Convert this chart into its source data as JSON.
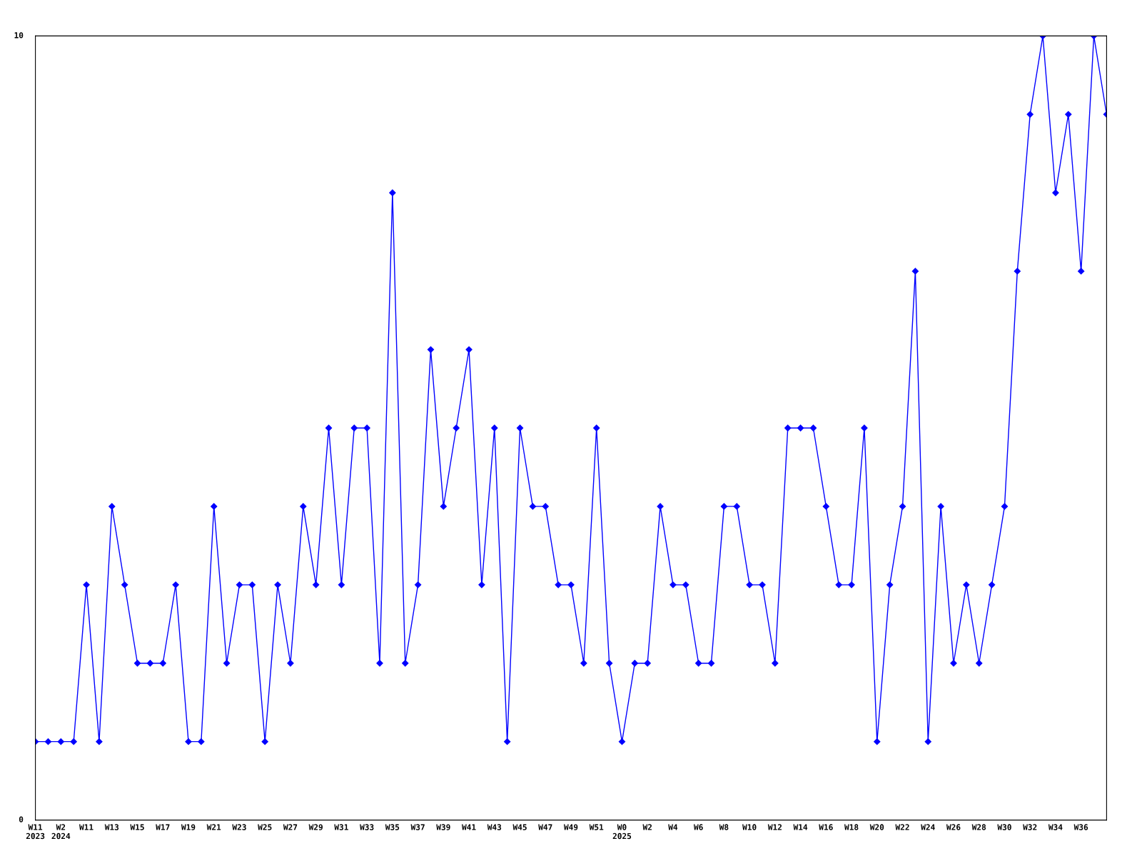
{
  "chart_data": {
    "type": "line",
    "categories": [
      "W11\n2023",
      null,
      "W2\n2024",
      null,
      "W11",
      null,
      "W13",
      null,
      "W15",
      null,
      "W17",
      null,
      "W19",
      null,
      "W21",
      null,
      "W23",
      null,
      "W25",
      null,
      "W27",
      null,
      "W29",
      null,
      "W31",
      null,
      "W33",
      null,
      "W35",
      null,
      "W37",
      null,
      "W39",
      null,
      "W41",
      null,
      "W43",
      null,
      "W45",
      null,
      "W47",
      null,
      "W49",
      null,
      "W51",
      null,
      "W0\n2025",
      null,
      "W2",
      null,
      "W4",
      null,
      "W6",
      null,
      "W8",
      null,
      "W10",
      null,
      "W12",
      null,
      "W14",
      null,
      "W16",
      null,
      "W18",
      null,
      "W20",
      null,
      "W22",
      null,
      "W24",
      null,
      "W26",
      null,
      "W28",
      null,
      "W30",
      null,
      "W32",
      null,
      "W34",
      null,
      "W36",
      null,
      null
    ],
    "series": [
      {
        "color": "#0000ff",
        "values": [
          1,
          1,
          1,
          1,
          3,
          1,
          4,
          3,
          2,
          2,
          2,
          3,
          1,
          1,
          4,
          2,
          3,
          3,
          1,
          3,
          2,
          4,
          3,
          5,
          3,
          5,
          5,
          2,
          8,
          2,
          3,
          6,
          4,
          5,
          6,
          3,
          5,
          1,
          5,
          4,
          4,
          3,
          3,
          2,
          5,
          2,
          1,
          2,
          2,
          4,
          3,
          3,
          2,
          2,
          4,
          4,
          3,
          3,
          2,
          5,
          5,
          5,
          4,
          3,
          3,
          5,
          1,
          3,
          4,
          7,
          1,
          4,
          2,
          3,
          2,
          3,
          4,
          7,
          9,
          10,
          8,
          9,
          7,
          10,
          9
        ]
      }
    ],
    "ylim": [
      0,
      10
    ],
    "yticks": [
      0,
      10
    ],
    "grid": false,
    "legend": false,
    "marker": "diamond",
    "line_style": "solid"
  }
}
